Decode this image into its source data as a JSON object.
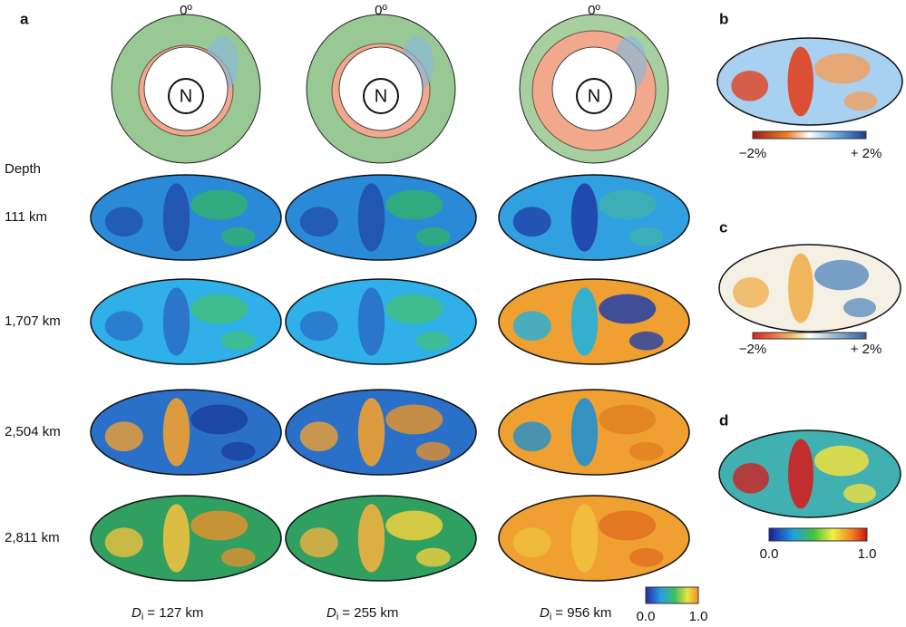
{
  "panels": {
    "a": {
      "label": "a",
      "ring_labels": [
        "0º",
        "0º",
        "0º"
      ],
      "pole_labels": [
        "N",
        "N",
        "N"
      ],
      "depth_heading": "Depth",
      "depths": [
        "111 km",
        "1,707 km",
        "2,504 km",
        "2,811 km"
      ],
      "columns": [
        {
          "symbol": "D",
          "subscript": "i",
          "text": "= 127 km"
        },
        {
          "symbol": "D",
          "subscript": "i",
          "text": "= 255 km"
        },
        {
          "symbol": "D",
          "subscript": "i",
          "text": "= 956 km"
        }
      ],
      "colorbar": {
        "min_label": "0.0",
        "max_label": "1.0"
      }
    },
    "b": {
      "label": "b",
      "colorbar": {
        "min_label": "−2%",
        "max_label": "+ 2%"
      }
    },
    "c": {
      "label": "c",
      "colorbar": {
        "min_label": "−2%",
        "max_label": "+ 2%"
      }
    },
    "d": {
      "label": "d",
      "colorbar": {
        "min_label": "0.0",
        "max_label": "1.0"
      }
    }
  }
}
